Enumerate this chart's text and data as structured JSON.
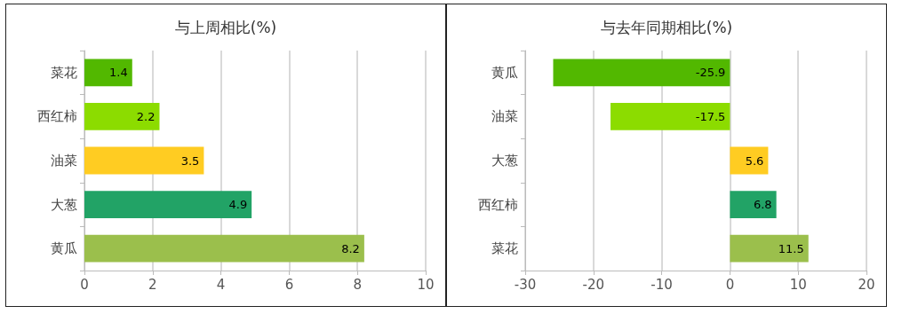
{
  "chart_data": [
    {
      "type": "bar",
      "orientation": "horizontal",
      "title": "与上周相比(%)",
      "categories": [
        "菜花",
        "西红柿",
        "油菜",
        "大葱",
        "黄瓜"
      ],
      "values": [
        1.4,
        2.2,
        3.5,
        4.9,
        8.2
      ],
      "colors": [
        "#52b800",
        "#8cdc00",
        "#ffcc22",
        "#22a366",
        "#9bbf4c"
      ],
      "xlim": [
        0,
        10
      ],
      "xticks": [
        0,
        2,
        4,
        6,
        8,
        10
      ],
      "grid": "x",
      "data_labels": true
    },
    {
      "type": "bar",
      "orientation": "horizontal",
      "title": "与去年同期相比(%)",
      "categories": [
        "黄瓜",
        "油菜",
        "大葱",
        "西红柿",
        "菜花"
      ],
      "values": [
        -25.9,
        -17.5,
        5.6,
        6.8,
        11.5
      ],
      "colors": [
        "#52b800",
        "#8cdc00",
        "#ffcc22",
        "#22a366",
        "#9bbf4c"
      ],
      "xlim": [
        -30,
        20
      ],
      "xticks": [
        -30,
        -20,
        -10,
        0,
        10,
        20
      ],
      "grid": "x",
      "data_labels": true
    }
  ]
}
